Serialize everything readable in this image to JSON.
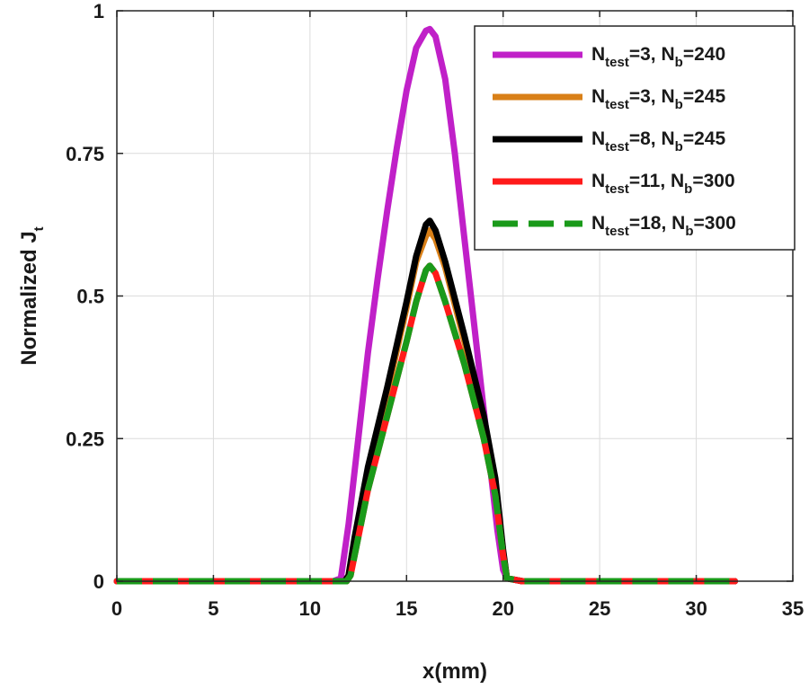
{
  "chart_data": {
    "type": "line",
    "title": "",
    "xlabel": "x(mm)",
    "ylabel_main": "Normalized J",
    "ylabel_sub": "t",
    "xlim": [
      0,
      35
    ],
    "ylim": [
      0,
      1
    ],
    "xticks": [
      0,
      5,
      10,
      15,
      20,
      25,
      30,
      35
    ],
    "yticks": [
      0,
      0.25,
      0.5,
      0.75,
      1
    ],
    "ytick_labels": [
      "0",
      "0.25",
      "0.5",
      "0.75",
      "1"
    ],
    "grid": true,
    "legend_position": "top-right",
    "series": [
      {
        "name": "N_test=3, N_b=240",
        "label_parts": {
          "n1": "N",
          "s1": "test",
          "v1": "=3, ",
          "n2": "N",
          "s2": "b",
          "v2": "=240"
        },
        "color": "#c020c8",
        "style": "solid",
        "x": [
          0,
          11.2,
          11.6,
          12,
          12.5,
          13,
          13.5,
          14,
          14.5,
          15,
          15.5,
          16,
          16.2,
          16.5,
          17,
          17.5,
          18,
          18.5,
          19,
          19.4,
          19.7,
          20,
          20.2,
          21,
          32
        ],
        "y": [
          0,
          0,
          0.005,
          0.1,
          0.25,
          0.4,
          0.53,
          0.65,
          0.76,
          0.86,
          0.935,
          0.965,
          0.968,
          0.955,
          0.88,
          0.75,
          0.6,
          0.45,
          0.3,
          0.18,
          0.09,
          0.02,
          0.005,
          0,
          0
        ]
      },
      {
        "name": "N_test=3, N_b=245",
        "label_parts": {
          "n1": "N",
          "s1": "test",
          "v1": "=3, ",
          "n2": "N",
          "s2": "b",
          "v2": "=245"
        },
        "color": "#d98018",
        "style": "solid",
        "x": [
          0,
          11.8,
          12,
          12.3,
          13,
          14,
          15,
          15.5,
          16,
          16.2,
          16.5,
          17,
          18,
          19,
          19.6,
          20,
          20.2,
          21,
          32
        ],
        "y": [
          0,
          0,
          0.01,
          0.07,
          0.19,
          0.33,
          0.48,
          0.56,
          0.605,
          0.615,
          0.6,
          0.55,
          0.42,
          0.28,
          0.17,
          0.05,
          0.005,
          0,
          0
        ]
      },
      {
        "name": "N_test=8, N_b=245",
        "label_parts": {
          "n1": "N",
          "s1": "test",
          "v1": "=8, ",
          "n2": "N",
          "s2": "b",
          "v2": "=245"
        },
        "color": "#000000",
        "style": "solid",
        "x": [
          0,
          11.8,
          12,
          12.3,
          13,
          14,
          15,
          15.5,
          16,
          16.2,
          16.5,
          17,
          18,
          19,
          19.6,
          20,
          20.2,
          21,
          32
        ],
        "y": [
          0,
          0,
          0.01,
          0.075,
          0.2,
          0.34,
          0.49,
          0.57,
          0.625,
          0.632,
          0.615,
          0.56,
          0.43,
          0.29,
          0.18,
          0.055,
          0.005,
          0,
          0
        ]
      },
      {
        "name": "N_test=11, N_b=300",
        "label_parts": {
          "n1": "N",
          "s1": "test",
          "v1": "=11, ",
          "n2": "N",
          "s2": "b",
          "v2": "=300"
        },
        "color": "#ff1a1a",
        "style": "solid",
        "x": [
          0,
          11.9,
          12.1,
          12.4,
          13,
          14,
          15,
          15.5,
          16,
          16.2,
          16.5,
          17,
          18,
          19,
          19.6,
          20,
          20.2,
          21,
          32
        ],
        "y": [
          0,
          0,
          0.01,
          0.06,
          0.16,
          0.29,
          0.42,
          0.49,
          0.545,
          0.553,
          0.54,
          0.49,
          0.38,
          0.25,
          0.15,
          0.045,
          0.005,
          0,
          0
        ]
      },
      {
        "name": "N_test=18, N_b=300",
        "label_parts": {
          "n1": "N",
          "s1": "test",
          "v1": "=18, ",
          "n2": "N",
          "s2": "b",
          "v2": "=300"
        },
        "color": "#1a9a1a",
        "style": "dashed",
        "x": [
          0,
          11.9,
          12.1,
          12.4,
          13,
          14,
          15,
          15.5,
          16,
          16.2,
          16.5,
          17,
          18,
          19,
          19.6,
          20,
          20.2,
          21,
          32
        ],
        "y": [
          0,
          0,
          0.01,
          0.06,
          0.16,
          0.29,
          0.42,
          0.49,
          0.545,
          0.553,
          0.54,
          0.49,
          0.38,
          0.25,
          0.15,
          0.045,
          0.005,
          0,
          0
        ]
      }
    ]
  }
}
